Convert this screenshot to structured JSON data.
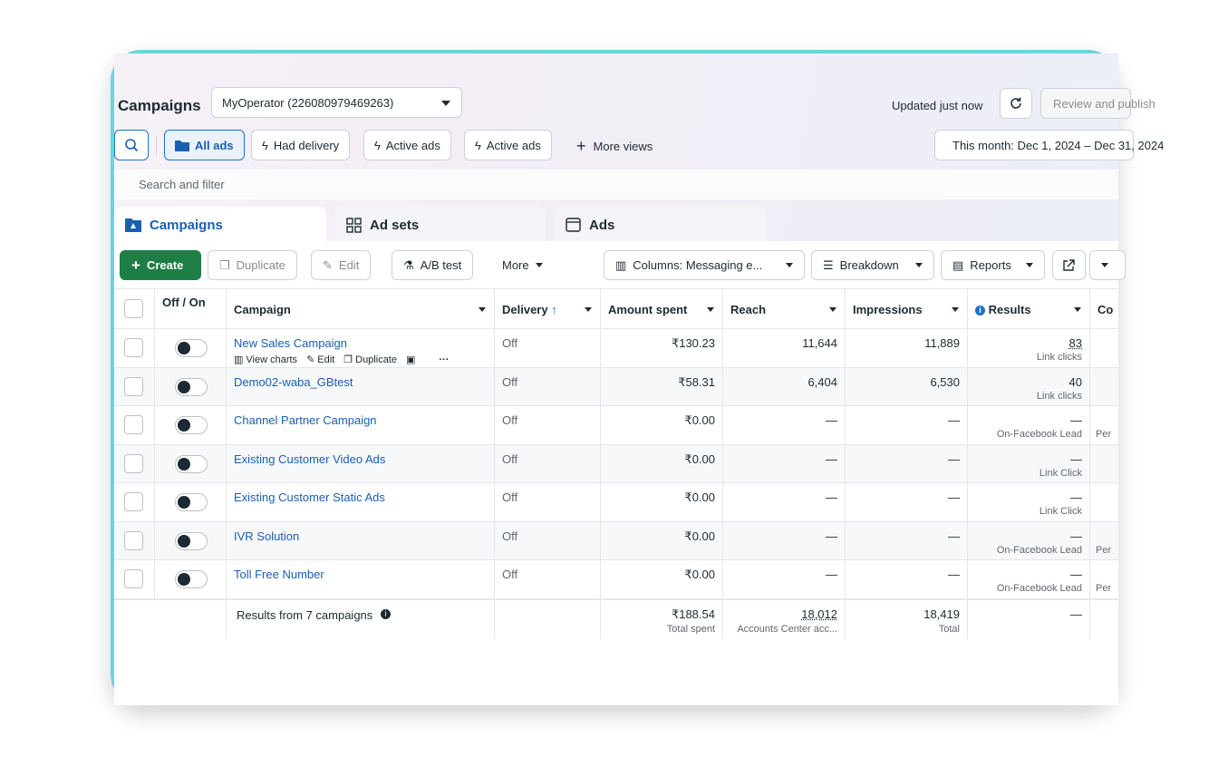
{
  "header": {
    "title": "Campaigns",
    "account": "MyOperator (226080979469263)",
    "updated": "Updated just now",
    "review_label": "Review and publish"
  },
  "views": {
    "all_ads": "All ads",
    "had_delivery": "Had delivery",
    "active_ads_1": "Active ads",
    "active_ads_2": "Active ads",
    "more_views": "More views",
    "date_range": "This month: Dec 1, 2024 – Dec 31, 2024"
  },
  "search": {
    "placeholder": "Search and filter"
  },
  "tabs": {
    "campaigns": "Campaigns",
    "ad_sets": "Ad sets",
    "ads": "Ads"
  },
  "toolbar": {
    "create": "Create",
    "duplicate": "Duplicate",
    "edit": "Edit",
    "ab_test": "A/B test",
    "more": "More",
    "columns": "Columns: Messaging e...",
    "breakdown": "Breakdown",
    "reports": "Reports"
  },
  "columns": {
    "offon": "Off / On",
    "campaign": "Campaign",
    "delivery": "Delivery",
    "amount": "Amount spent",
    "reach": "Reach",
    "impressions": "Impressions",
    "results": "Results",
    "cost": "Co"
  },
  "row_actions": {
    "view_charts": "View charts",
    "edit": "Edit",
    "duplicate": "Duplicate"
  },
  "rows": [
    {
      "name": "New Sales Campaign",
      "delivery": "Off",
      "amount": "₹130.23",
      "reach": "11,644",
      "impressions": "11,889",
      "results": "83",
      "result_type": "Link clicks",
      "cost": ""
    },
    {
      "name": "Demo02-waba_GBtest",
      "delivery": "Off",
      "amount": "₹58.31",
      "reach": "6,404",
      "impressions": "6,530",
      "results": "40",
      "result_type": "Link clicks",
      "cost": ""
    },
    {
      "name": "Channel Partner Campaign",
      "delivery": "Off",
      "amount": "₹0.00",
      "reach": "—",
      "impressions": "—",
      "results": "—",
      "result_type": "On-Facebook Lead",
      "cost": "Per"
    },
    {
      "name": "Existing Customer Video Ads",
      "delivery": "Off",
      "amount": "₹0.00",
      "reach": "—",
      "impressions": "—",
      "results": "—",
      "result_type": "Link Click",
      "cost": ""
    },
    {
      "name": "Existing Customer Static Ads",
      "delivery": "Off",
      "amount": "₹0.00",
      "reach": "—",
      "impressions": "—",
      "results": "—",
      "result_type": "Link Click",
      "cost": ""
    },
    {
      "name": "IVR Solution",
      "delivery": "Off",
      "amount": "₹0.00",
      "reach": "—",
      "impressions": "—",
      "results": "—",
      "result_type": "On-Facebook Lead",
      "cost": "Per"
    },
    {
      "name": "Toll Free Number",
      "delivery": "Off",
      "amount": "₹0.00",
      "reach": "—",
      "impressions": "—",
      "results": "—",
      "result_type": "On-Facebook Lead",
      "cost": "Per"
    }
  ],
  "totals": {
    "label": "Results from 7 campaigns",
    "amount": "₹188.54",
    "amount_sub": "Total spent",
    "reach": "18,012",
    "reach_sub": "Accounts Center acc...",
    "impressions": "18,419",
    "impressions_sub": "Total",
    "results": "—"
  }
}
